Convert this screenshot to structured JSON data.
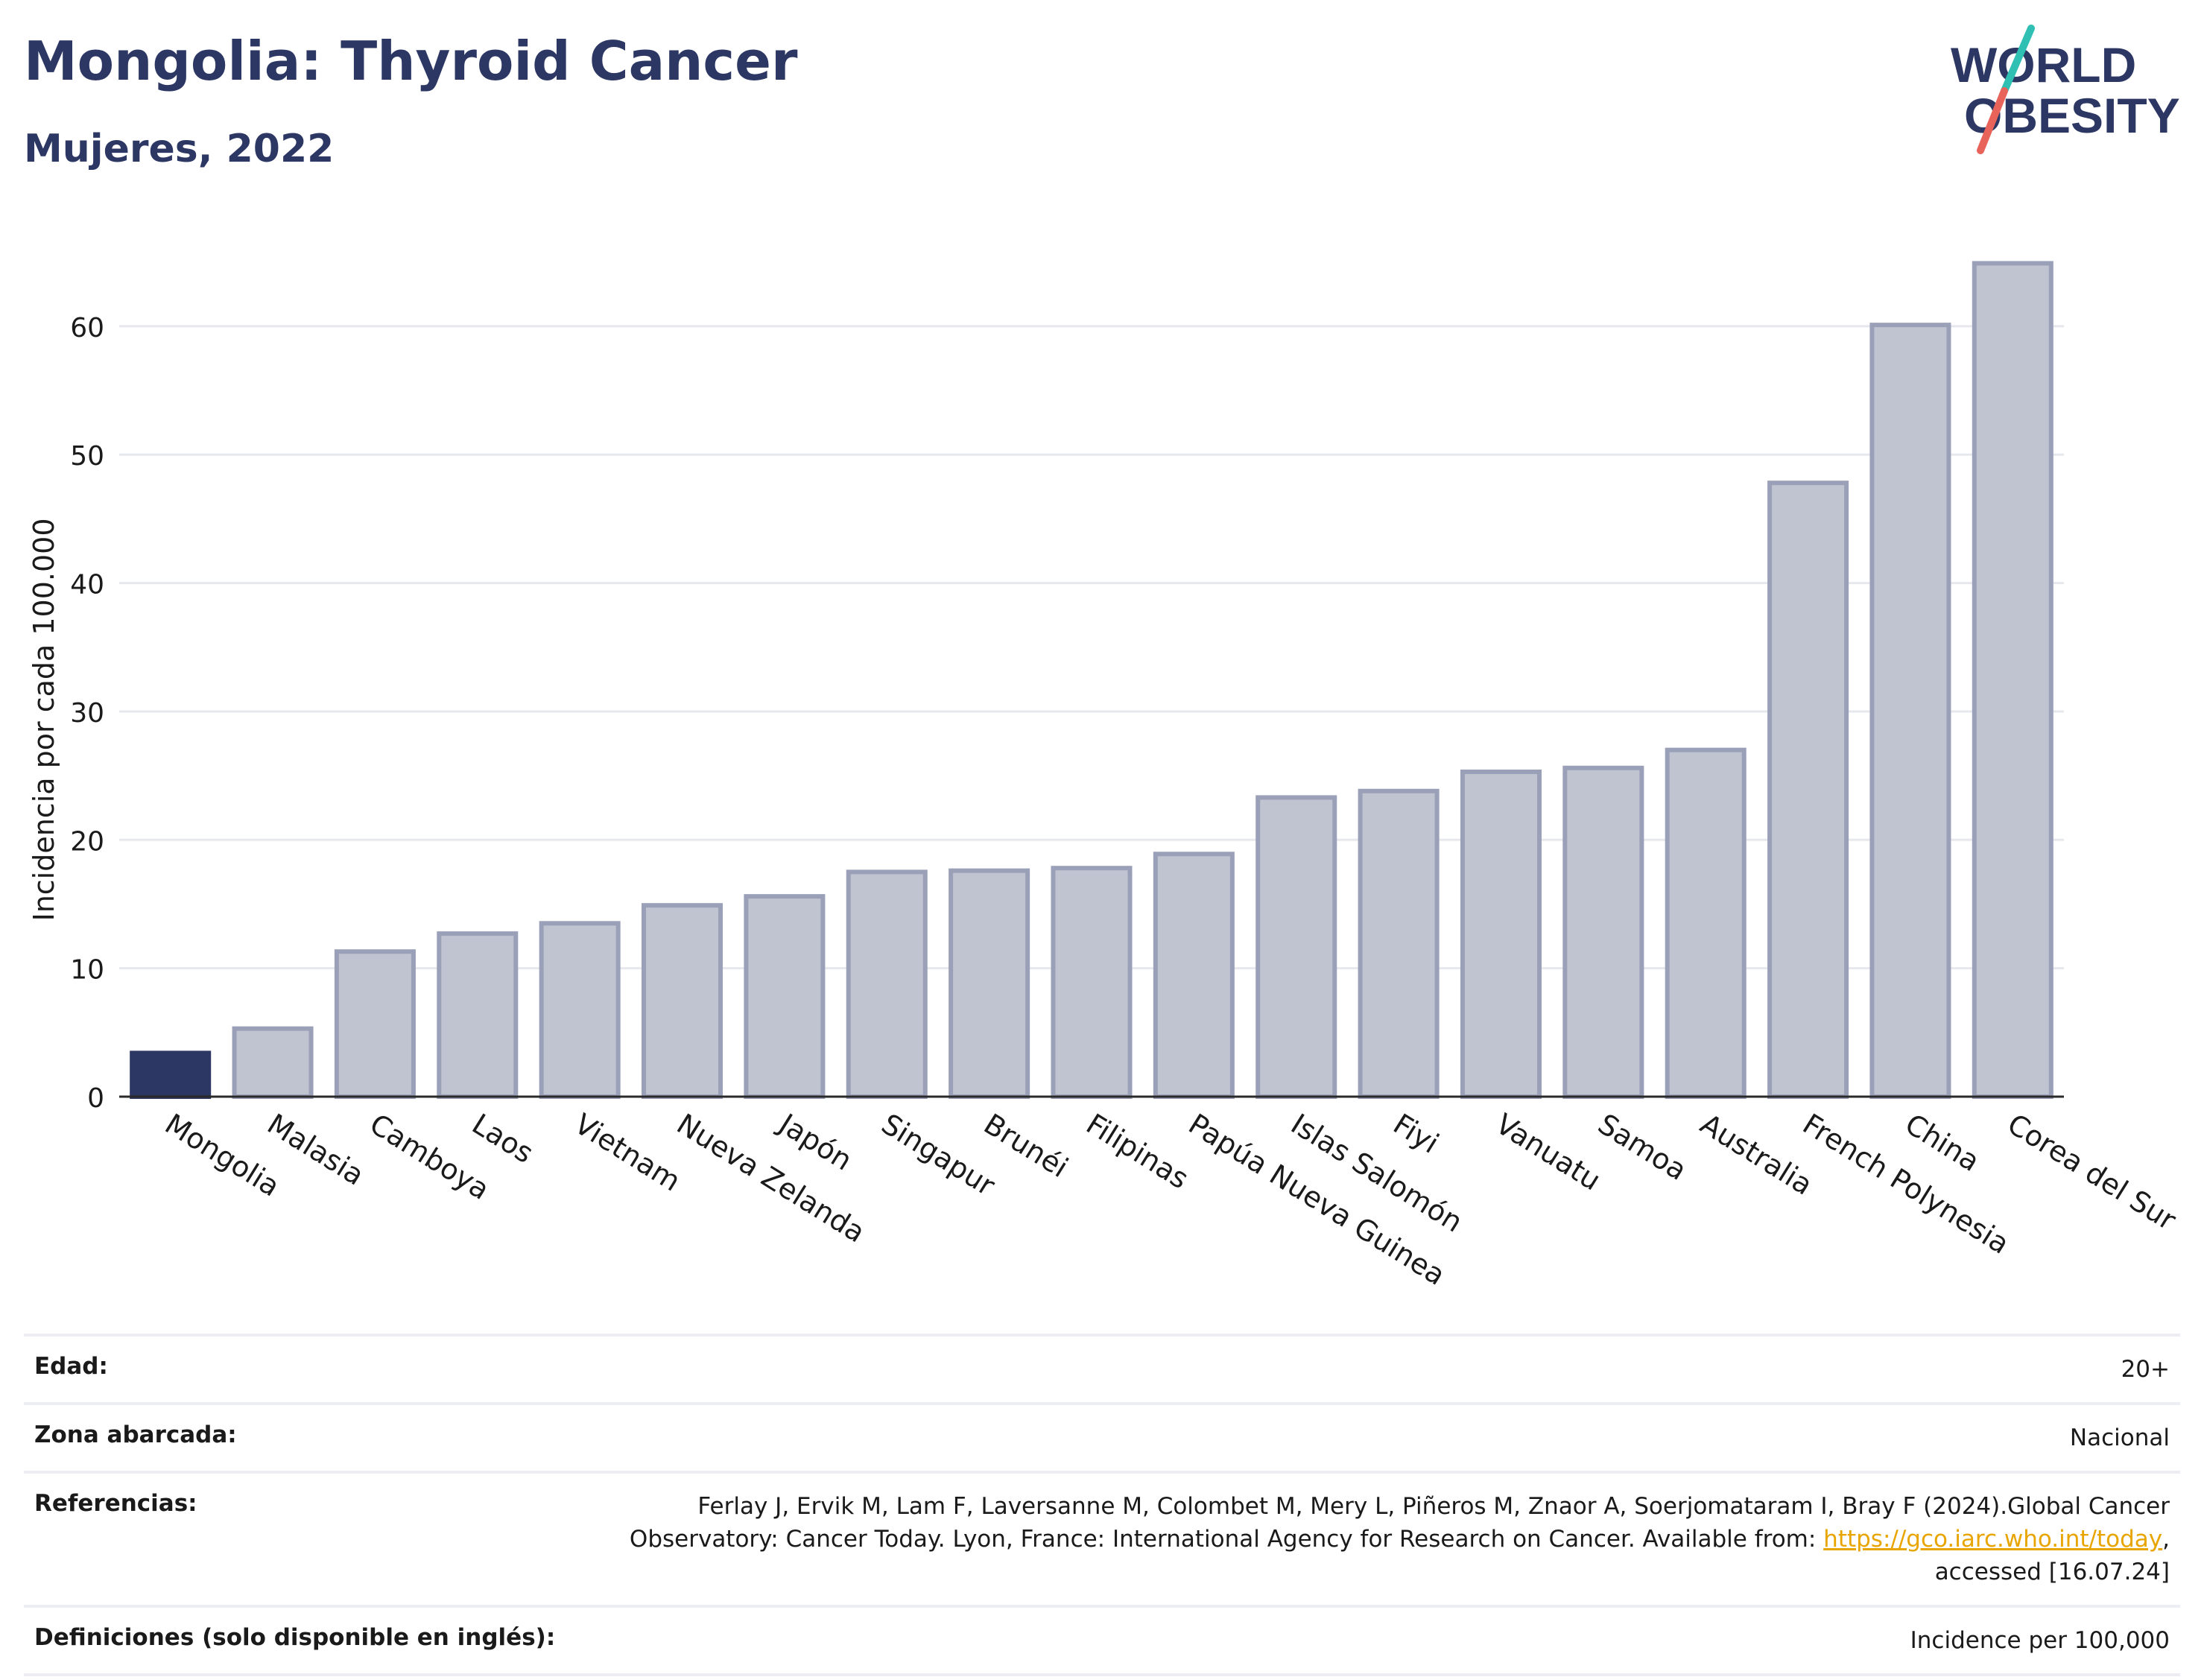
{
  "header": {
    "title": "Mongolia: Thyroid Cancer",
    "subtitle": "Mujeres, 2022"
  },
  "logo": {
    "line1": "WORLD",
    "line2": "OBESITY",
    "text_color": "#2c3764",
    "slash_colors": [
      "#2fbfb3",
      "#e8645a"
    ]
  },
  "chart_data": {
    "type": "bar",
    "categories": [
      "Mongolia",
      "Malasia",
      "Camboya",
      "Laos",
      "Vietnam",
      "Nueva Zelanda",
      "Japón",
      "Singapur",
      "Brunéi",
      "Filipinas",
      "Papúa Nueva Guinea",
      "Islas Salomón",
      "Fiyi",
      "Vanuatu",
      "Samoa",
      "Australia",
      "French Polynesia",
      "China",
      "Corea del Sur"
    ],
    "values": [
      3.4,
      5.3,
      11.3,
      12.7,
      13.5,
      14.9,
      15.6,
      17.5,
      17.6,
      17.8,
      18.9,
      23.3,
      23.8,
      25.3,
      25.6,
      27.0,
      47.8,
      60.1,
      64.9
    ],
    "highlight": "Mongolia",
    "ylabel": "Incidencia por cada 100.000",
    "xlabel": "",
    "ylim": [
      0,
      68
    ],
    "yticks": [
      0,
      10,
      20,
      30,
      40,
      50,
      60
    ],
    "grid": true,
    "colors": {
      "highlight": "#2c3764",
      "bar_fill": "#c0c3d0",
      "bar_stroke": "#9aa0b8",
      "grid": "#e6e8ee"
    }
  },
  "meta": {
    "rows": [
      {
        "label": "Edad:",
        "value": "20+"
      },
      {
        "label": "Zona abarcada:",
        "value": "Nacional"
      },
      {
        "label": "Referencias:",
        "value_before": "Ferlay J, Ervik M, Lam F, Laversanne M, Colombet M, Mery L, Piñeros M, Znaor A, Soerjomataram I, Bray F (2024).Global Cancer Observatory: Cancer Today. Lyon, France: International Agency for Research on Cancer. Available from: ",
        "link": "https://gco.iarc.who.int/today",
        "value_after": ", accessed [16.07.24]"
      },
      {
        "label": "Definiciones (solo disponible en inglés):",
        "value": "Incidence per 100,000"
      }
    ]
  }
}
